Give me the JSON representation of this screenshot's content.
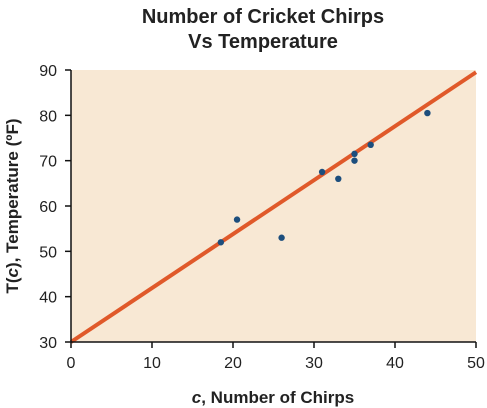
{
  "chart_data": {
    "type": "scatter",
    "title_lines": [
      "Number of Cricket Chirps",
      "Vs Temperature"
    ],
    "xlabel_italic": "c",
    "xlabel_rest": ", Number of Chirps",
    "ylabel_prefix": "T(",
    "ylabel_italic": "c",
    "ylabel_rest": "), Temperature (ºF)",
    "xlim": [
      0,
      50
    ],
    "ylim": [
      30,
      90
    ],
    "x_ticks": [
      0,
      10,
      20,
      30,
      40,
      50
    ],
    "y_ticks": [
      30,
      40,
      50,
      60,
      70,
      80,
      90
    ],
    "grid": false,
    "colors": {
      "plot_background": "#f8e8d4",
      "axis": "#111111",
      "points": "#1d4e7d",
      "line": "#e0592a"
    },
    "points": [
      {
        "x": 18.5,
        "y": 52
      },
      {
        "x": 20.5,
        "y": 57
      },
      {
        "x": 26,
        "y": 53
      },
      {
        "x": 31,
        "y": 67.5
      },
      {
        "x": 33,
        "y": 66
      },
      {
        "x": 35,
        "y": 71.5
      },
      {
        "x": 35,
        "y": 70
      },
      {
        "x": 37,
        "y": 73.5
      },
      {
        "x": 44,
        "y": 80.5
      }
    ],
    "trend_line": {
      "x1": 0,
      "y1": 30,
      "x2": 50,
      "y2": 89.5
    }
  }
}
